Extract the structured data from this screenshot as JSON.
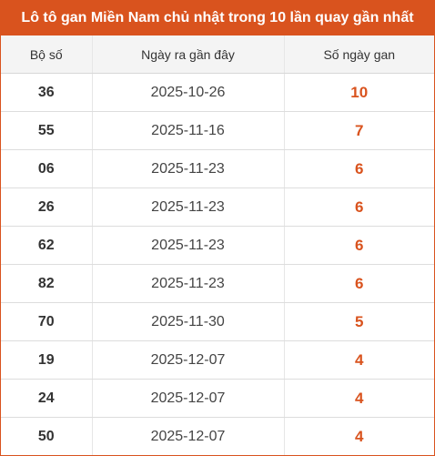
{
  "title": "Lô tô gan Miền Nam chủ nhật trong 10 lần quay gần nhất",
  "accent_color": "#d9531e",
  "columns": [
    "Bộ số",
    "Ngày ra gần đây",
    "Số ngày gan"
  ],
  "rows": [
    {
      "number": "36",
      "date": "2025-10-26",
      "days": "10"
    },
    {
      "number": "55",
      "date": "2025-11-16",
      "days": "7"
    },
    {
      "number": "06",
      "date": "2025-11-23",
      "days": "6"
    },
    {
      "number": "26",
      "date": "2025-11-23",
      "days": "6"
    },
    {
      "number": "62",
      "date": "2025-11-23",
      "days": "6"
    },
    {
      "number": "82",
      "date": "2025-11-23",
      "days": "6"
    },
    {
      "number": "70",
      "date": "2025-11-30",
      "days": "5"
    },
    {
      "number": "19",
      "date": "2025-12-07",
      "days": "4"
    },
    {
      "number": "24",
      "date": "2025-12-07",
      "days": "4"
    },
    {
      "number": "50",
      "date": "2025-12-07",
      "days": "4"
    }
  ]
}
